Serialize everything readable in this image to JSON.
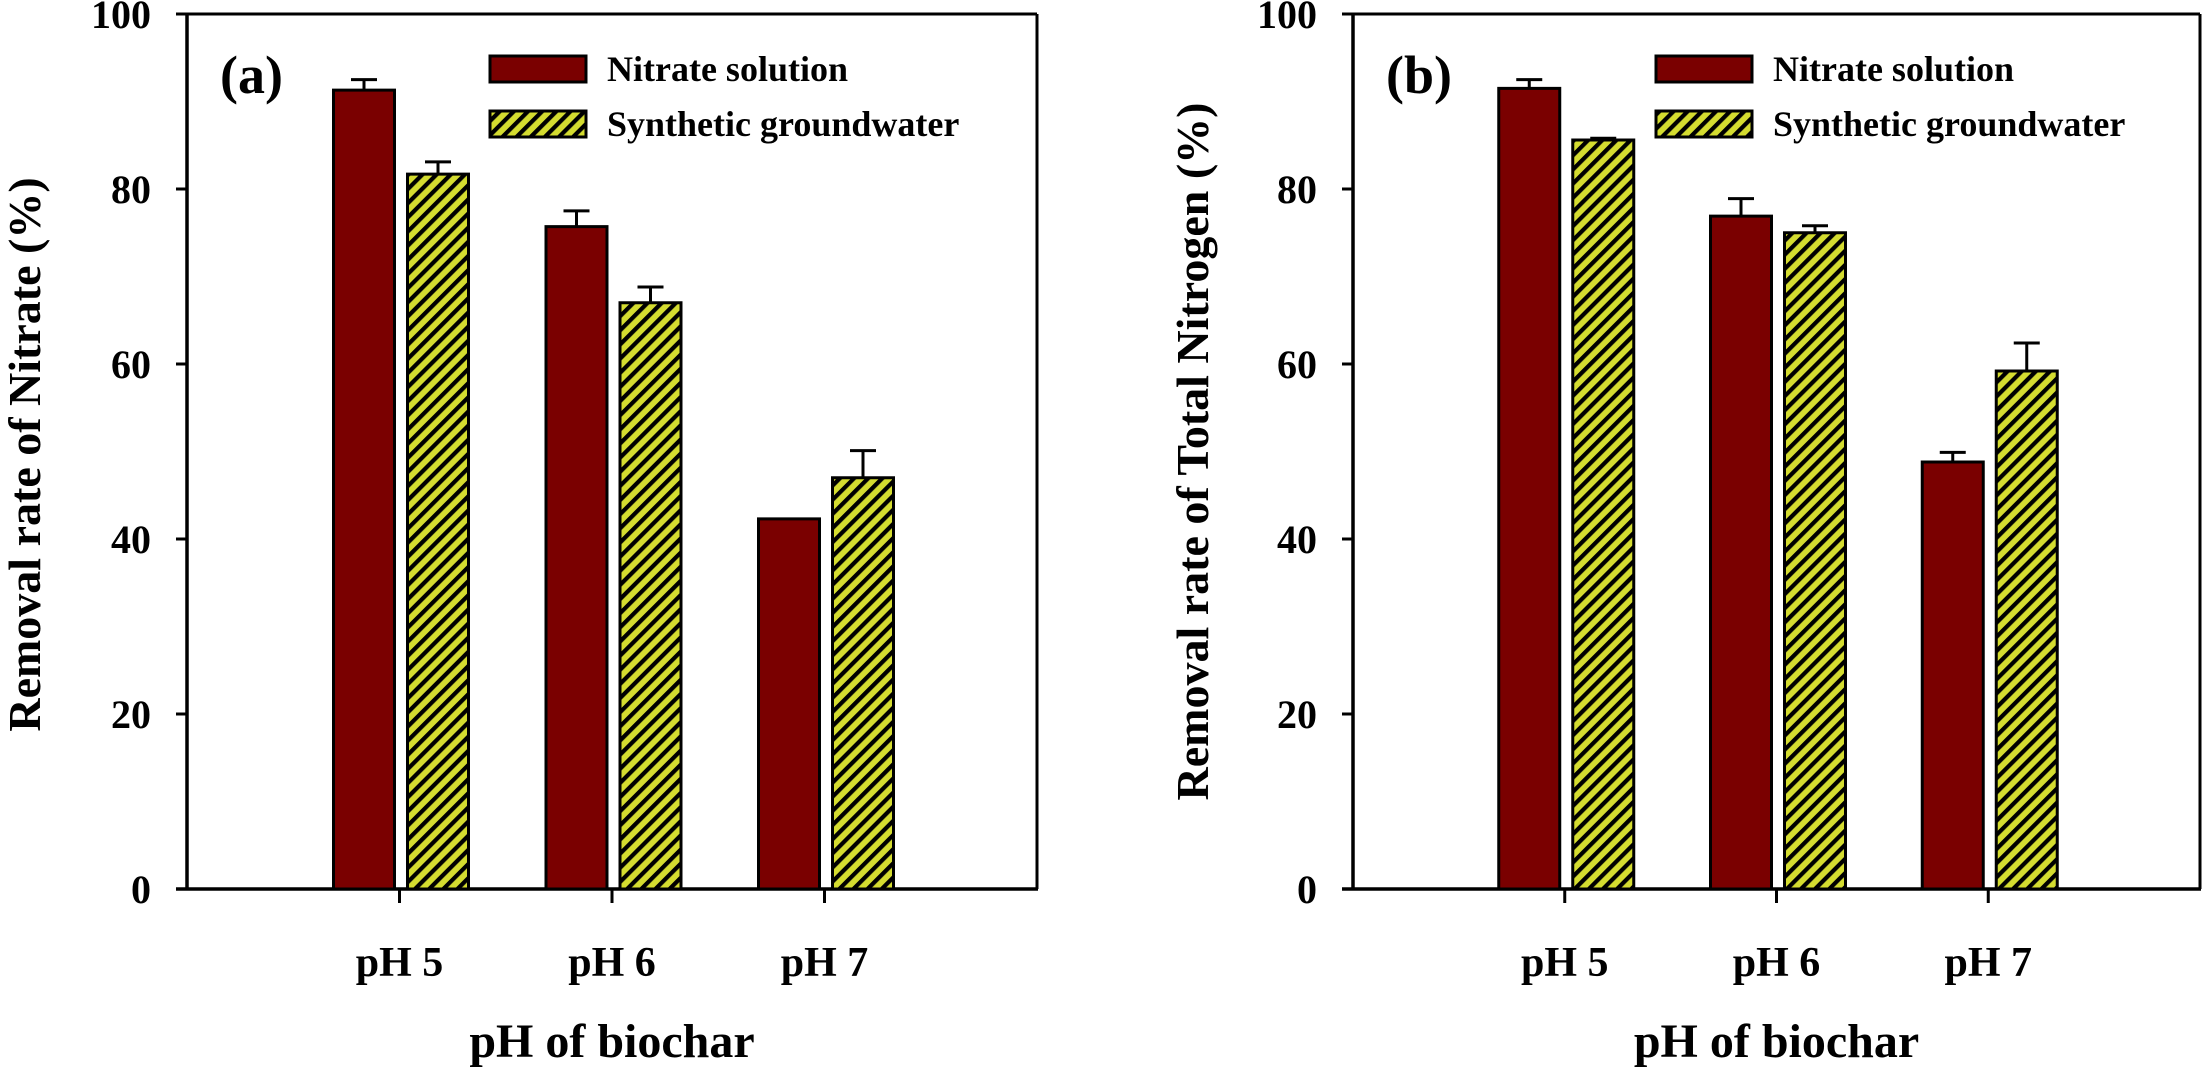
{
  "figure": {
    "colors": {
      "nitrate_solution": "#7a0000",
      "synthetic_groundwater": "#d4dc30",
      "hatch": "#000000",
      "axis": "#000000",
      "background": "#ffffff"
    }
  },
  "chart_data": [
    {
      "type": "bar",
      "panel_label": "(a)",
      "title": "",
      "xlabel": "pH of biochar",
      "ylabel": "Removal rate of Nitrate (%)",
      "ylim": [
        0,
        100
      ],
      "yticks": [
        "0",
        "20",
        "40",
        "60",
        "80",
        "100"
      ],
      "ytick_values": [
        0,
        20,
        40,
        60,
        80,
        100
      ],
      "categories": [
        "pH 5",
        "pH 6",
        "pH 7"
      ],
      "grid": false,
      "legend_position": "top-right",
      "series": [
        {
          "name": "Nitrate solution",
          "pattern": "solid",
          "values": [
            91.3,
            75.7,
            42.3
          ],
          "errors": [
            1.2,
            1.8,
            0.1
          ]
        },
        {
          "name": "Synthetic groundwater",
          "pattern": "hatched",
          "values": [
            81.7,
            67.0,
            47.0
          ],
          "errors": [
            1.4,
            1.8,
            3.1
          ]
        }
      ]
    },
    {
      "type": "bar",
      "panel_label": "(b)",
      "title": "",
      "xlabel": "pH of biochar",
      "ylabel": "Removal rate of Total Nitrogen (%)",
      "ylim": [
        0,
        100
      ],
      "yticks": [
        "0",
        "20",
        "40",
        "60",
        "80",
        "100"
      ],
      "ytick_values": [
        0,
        20,
        40,
        60,
        80,
        100
      ],
      "categories": [
        "pH 5",
        "pH 6",
        "pH 7"
      ],
      "grid": false,
      "legend_position": "top-right",
      "series": [
        {
          "name": "Nitrate solution",
          "pattern": "solid",
          "values": [
            91.5,
            76.9,
            48.8
          ],
          "errors": [
            1.0,
            2.0,
            1.1
          ]
        },
        {
          "name": "Synthetic groundwater",
          "pattern": "hatched",
          "values": [
            85.6,
            75.0,
            59.2
          ],
          "errors": [
            0.2,
            0.8,
            3.2
          ]
        }
      ]
    }
  ]
}
